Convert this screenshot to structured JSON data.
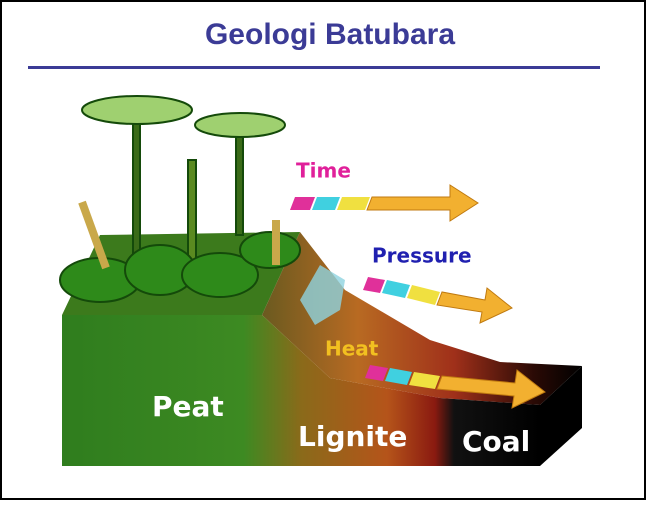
{
  "title": "Geologi Batubara",
  "arrows": {
    "time": "Time",
    "pressure": "Pressure",
    "heat": "Heat"
  },
  "layers": {
    "peat": "Peat",
    "lignite": "Lignite",
    "coal": "Coal"
  }
}
